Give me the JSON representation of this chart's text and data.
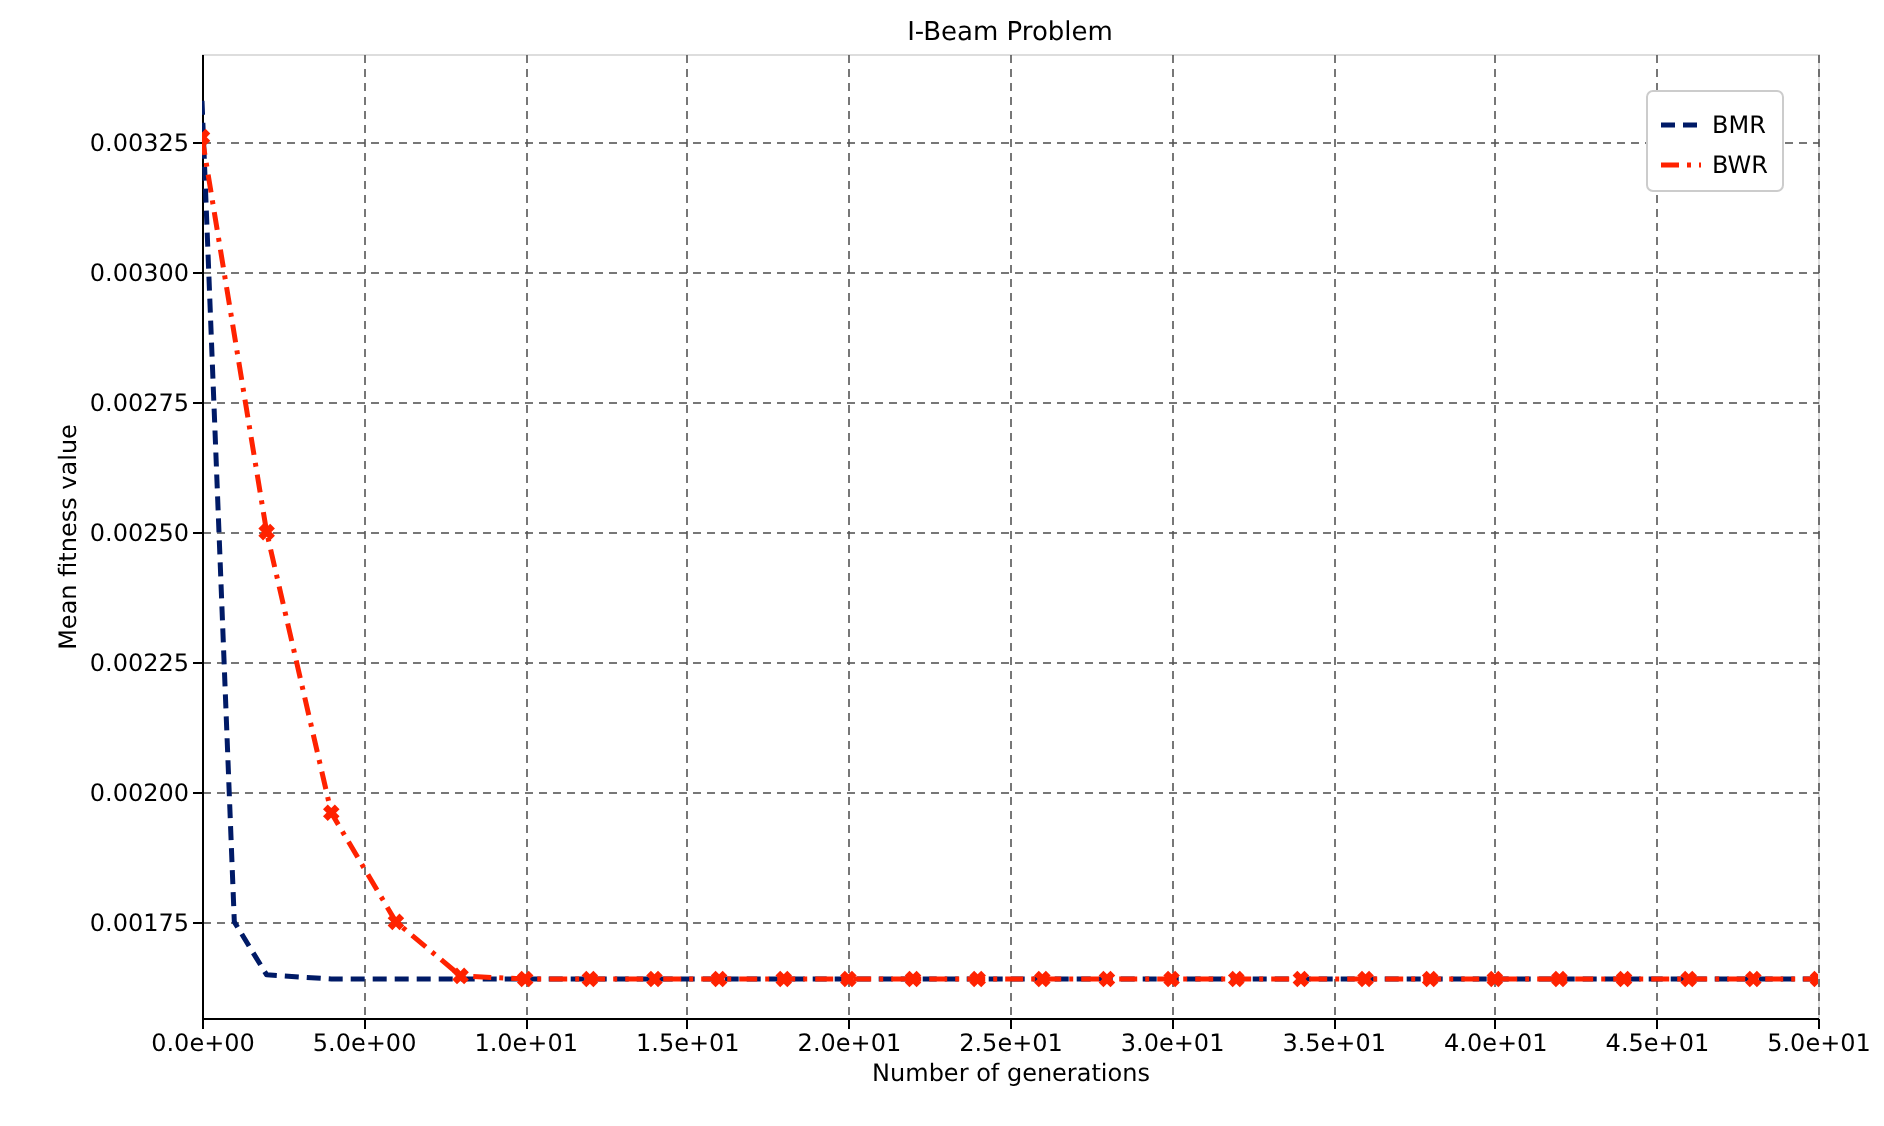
{
  "chart_data": {
    "type": "line",
    "title": "I-Beam Problem",
    "xlabel": "Number of generations",
    "ylabel": "Mean fitness value",
    "xlim": [
      0,
      50
    ],
    "ylim": [
      0.001565,
      0.00342
    ],
    "xticks": [
      {
        "value": 0,
        "label": "0.0e+00"
      },
      {
        "value": 5,
        "label": "5.0e+00"
      },
      {
        "value": 10,
        "label": "1.0e+01"
      },
      {
        "value": 15,
        "label": "1.5e+01"
      },
      {
        "value": 20,
        "label": "2.0e+01"
      },
      {
        "value": 25,
        "label": "2.5e+01"
      },
      {
        "value": 30,
        "label": "3.0e+01"
      },
      {
        "value": 35,
        "label": "3.5e+01"
      },
      {
        "value": 40,
        "label": "4.0e+01"
      },
      {
        "value": 45,
        "label": "4.5e+01"
      },
      {
        "value": 50,
        "label": "5.0e+01"
      }
    ],
    "yticks": [
      0.00175,
      {
        "value": 0.002,
        "label": "0.00200"
      },
      0.00225,
      {
        "value": 0.0025,
        "label": "0.00250"
      },
      0.00275,
      {
        "value": 0.003,
        "label": "0.00300"
      },
      0.00325
    ],
    "grid": true,
    "legend": "top right",
    "series": [
      {
        "name": "BMR",
        "color": "#001a66",
        "line_style": "dashed",
        "marker": "none",
        "x": [
          0,
          1,
          2,
          4,
          10,
          20,
          30,
          40,
          50
        ],
        "values": [
          0.00333,
          0.00175,
          0.001648,
          0.00164,
          0.00164,
          0.00164,
          0.00164,
          0.00164,
          0.00164
        ]
      },
      {
        "name": "BWR",
        "color": "#ff2200",
        "line_style": "dashdot",
        "marker": "cross",
        "x": [
          0,
          2,
          4,
          6,
          8,
          10,
          12,
          14,
          16,
          18,
          20,
          22,
          24,
          26,
          28,
          30,
          32,
          34,
          36,
          38,
          40,
          42,
          44,
          46,
          48,
          50
        ],
        "values": [
          0.00326,
          0.0025,
          0.00196,
          0.00175,
          0.001646,
          0.00164,
          0.00164,
          0.00164,
          0.00164,
          0.00164,
          0.00164,
          0.00164,
          0.00164,
          0.00164,
          0.00164,
          0.00164,
          0.00164,
          0.00164,
          0.00164,
          0.00164,
          0.00164,
          0.00164,
          0.00164,
          0.00164,
          0.00164,
          0.00164
        ]
      }
    ]
  }
}
